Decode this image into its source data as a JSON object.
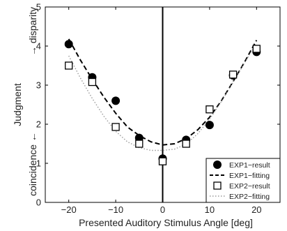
{
  "chart_data": {
    "type": "scatter",
    "title": "",
    "xlabel": "Presented Auditory Stimulus Angle [deg]",
    "ylabel": "Judgment",
    "ylabel_top": "→ disparity",
    "ylabel_bottom": "coincidence ←",
    "xlim": [
      -25,
      25
    ],
    "ylim": [
      0,
      5
    ],
    "x_ticks": [
      -20,
      -10,
      0,
      10,
      20
    ],
    "x_tick_labels": [
      "−20",
      "−10",
      "0",
      "10",
      "20"
    ],
    "y_ticks": [
      0,
      1,
      2,
      3,
      4,
      5
    ],
    "y_tick_labels": [
      "0",
      "1",
      "2",
      "3",
      "4",
      "5"
    ],
    "grid": false,
    "vertical_reference_line_x": 0,
    "legend_position": "bottom-right",
    "series": [
      {
        "name": "EXP1−result",
        "kind": "points",
        "marker": "filled-circle",
        "color": "#000000",
        "x": [
          -20,
          -15,
          -10,
          -5,
          0,
          5,
          10,
          15,
          20
        ],
        "y": [
          4.05,
          3.2,
          2.6,
          1.65,
          1.12,
          1.6,
          1.98,
          3.25,
          3.85
        ]
      },
      {
        "name": "EXP1−fitting",
        "kind": "line",
        "style": "dashed",
        "color": "#000000",
        "x": [
          -20,
          -17.5,
          -15,
          -12.5,
          -10,
          -7.5,
          -5,
          -2.5,
          0,
          2.5,
          5,
          7.5,
          10,
          12.5,
          15,
          17.5,
          20
        ],
        "y": [
          4.18,
          3.64,
          3.15,
          2.69,
          2.28,
          1.93,
          1.71,
          1.55,
          1.47,
          1.5,
          1.63,
          1.86,
          2.18,
          2.6,
          3.09,
          3.6,
          4.15
        ]
      },
      {
        "name": "EXP2−result",
        "kind": "points",
        "marker": "open-square",
        "color": "#000000",
        "x": [
          -20,
          -15,
          -10,
          -5,
          0,
          5,
          10,
          15,
          20
        ],
        "y": [
          3.5,
          3.08,
          1.93,
          1.5,
          1.05,
          1.5,
          2.38,
          3.27,
          3.93
        ]
      },
      {
        "name": "EXP2−fitting",
        "kind": "line",
        "style": "dotted",
        "color": "#9a9a9a",
        "x": [
          -20,
          -17.5,
          -15,
          -12.5,
          -10,
          -7.5,
          -5,
          -2.5,
          0,
          2.5,
          5,
          7.5,
          10,
          12.5,
          15,
          17.5,
          20
        ],
        "y": [
          3.75,
          3.18,
          2.66,
          2.2,
          1.82,
          1.55,
          1.4,
          1.33,
          1.33,
          1.36,
          1.49,
          1.76,
          2.13,
          2.58,
          3.07,
          3.58,
          4.08
        ]
      }
    ]
  }
}
